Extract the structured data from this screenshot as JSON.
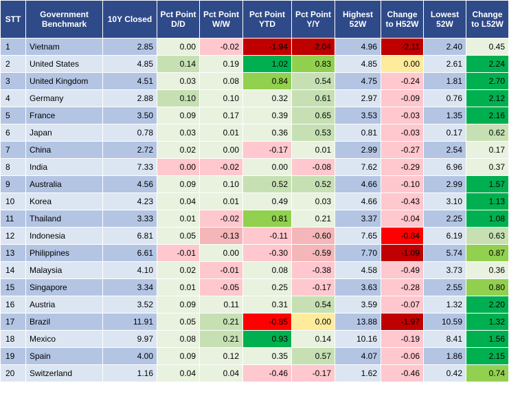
{
  "headers": {
    "stt": "STT",
    "benchmark": "Government Benchmark",
    "closed": "10Y Closed",
    "dd": "Pct Point D/D",
    "ww": "Pct Point W/W",
    "ytd": "Pct Point YTD",
    "yy": "Pct Point Y/Y",
    "h52": "Highest 52W",
    "ch52": "Change to H52W",
    "l52": "Lowest 52W",
    "cl52": "Change to L52W"
  },
  "colors": {
    "header": "#2f4a88",
    "row_odd": "#b4c5e4",
    "row_even": "#dce6f2",
    "neutral": "#e8f2df",
    "dark_red": "#c00000",
    "red": "#ff0000",
    "light_red": "#ffc7ce",
    "pale_red": "#f4b6b8",
    "yellow": "#ffeb9c",
    "bright_green": "#00b050",
    "green": "#92d050",
    "light_green": "#c6e0b4",
    "pale_green": "#e2efd9"
  },
  "rows": [
    {
      "stt": "1",
      "name": "Vietnam",
      "closed": "2.85",
      "dd": "0.00",
      "ww": "-0.02",
      "ytd": "-1.94",
      "yy": "-2.04",
      "h52": "4.96",
      "ch52": "-2.11",
      "l52": "2.40",
      "cl52": "0.45",
      "c": {
        "dd": "neutral",
        "ww": "light_red",
        "ytd": "dark_red",
        "yy": "dark_red",
        "ch52": "dark_red",
        "cl52": "neutral"
      }
    },
    {
      "stt": "2",
      "name": "United States",
      "closed": "4.85",
      "dd": "0.14",
      "ww": "0.19",
      "ytd": "1.02",
      "yy": "0.83",
      "h52": "4.85",
      "ch52": "0.00",
      "l52": "2.61",
      "cl52": "2.24",
      "c": {
        "dd": "light_green",
        "ww": "neutral",
        "ytd": "bright_green",
        "yy": "green",
        "ch52": "yellow",
        "cl52": "bright_green"
      }
    },
    {
      "stt": "3",
      "name": "United Kingdom",
      "closed": "4.51",
      "dd": "0.03",
      "ww": "0.08",
      "ytd": "0.84",
      "yy": "0.54",
      "h52": "4.75",
      "ch52": "-0.24",
      "l52": "1.81",
      "cl52": "2.70",
      "c": {
        "dd": "neutral",
        "ww": "neutral",
        "ytd": "green",
        "yy": "light_green",
        "ch52": "light_red",
        "cl52": "bright_green"
      }
    },
    {
      "stt": "4",
      "name": "Germany",
      "closed": "2.88",
      "dd": "0.10",
      "ww": "0.10",
      "ytd": "0.32",
      "yy": "0.61",
      "h52": "2.97",
      "ch52": "-0.09",
      "l52": "0.76",
      "cl52": "2.12",
      "c": {
        "dd": "light_green",
        "ww": "neutral",
        "ytd": "neutral",
        "yy": "light_green",
        "ch52": "light_red",
        "cl52": "bright_green"
      }
    },
    {
      "stt": "5",
      "name": "France",
      "closed": "3.50",
      "dd": "0.09",
      "ww": "0.17",
      "ytd": "0.39",
      "yy": "0.65",
      "h52": "3.53",
      "ch52": "-0.03",
      "l52": "1.35",
      "cl52": "2.16",
      "c": {
        "dd": "neutral",
        "ww": "neutral",
        "ytd": "neutral",
        "yy": "light_green",
        "ch52": "light_red",
        "cl52": "bright_green"
      }
    },
    {
      "stt": "6",
      "name": "Japan",
      "closed": "0.78",
      "dd": "0.03",
      "ww": "0.01",
      "ytd": "0.36",
      "yy": "0.53",
      "h52": "0.81",
      "ch52": "-0.03",
      "l52": "0.17",
      "cl52": "0.62",
      "c": {
        "dd": "neutral",
        "ww": "neutral",
        "ytd": "neutral",
        "yy": "light_green",
        "ch52": "light_red",
        "cl52": "light_green"
      }
    },
    {
      "stt": "7",
      "name": "China",
      "closed": "2.72",
      "dd": "0.02",
      "ww": "0.00",
      "ytd": "-0.17",
      "yy": "0.01",
      "h52": "2.99",
      "ch52": "-0.27",
      "l52": "2.54",
      "cl52": "0.17",
      "c": {
        "dd": "neutral",
        "ww": "neutral",
        "ytd": "light_red",
        "yy": "neutral",
        "ch52": "light_red",
        "cl52": "neutral"
      }
    },
    {
      "stt": "8",
      "name": "India",
      "closed": "7.33",
      "dd": "0.00",
      "ww": "-0.02",
      "ytd": "0.00",
      "yy": "-0.08",
      "h52": "7.62",
      "ch52": "-0.29",
      "l52": "6.96",
      "cl52": "0.37",
      "c": {
        "dd": "light_red",
        "ww": "light_red",
        "ytd": "neutral",
        "yy": "light_red",
        "ch52": "light_red",
        "cl52": "neutral"
      }
    },
    {
      "stt": "9",
      "name": "Australia",
      "closed": "4.56",
      "dd": "0.09",
      "ww": "0.10",
      "ytd": "0.52",
      "yy": "0.52",
      "h52": "4.66",
      "ch52": "-0.10",
      "l52": "2.99",
      "cl52": "1.57",
      "c": {
        "dd": "neutral",
        "ww": "neutral",
        "ytd": "light_green",
        "yy": "light_green",
        "ch52": "light_red",
        "cl52": "bright_green"
      }
    },
    {
      "stt": "10",
      "name": "Korea",
      "closed": "4.23",
      "dd": "0.04",
      "ww": "0.01",
      "ytd": "0.49",
      "yy": "0.03",
      "h52": "4.66",
      "ch52": "-0.43",
      "l52": "3.10",
      "cl52": "1.13",
      "c": {
        "dd": "neutral",
        "ww": "neutral",
        "ytd": "neutral",
        "yy": "neutral",
        "ch52": "light_red",
        "cl52": "bright_green"
      }
    },
    {
      "stt": "11",
      "name": "Thailand",
      "closed": "3.33",
      "dd": "0.01",
      "ww": "-0.02",
      "ytd": "0.81",
      "yy": "0.21",
      "h52": "3.37",
      "ch52": "-0.04",
      "l52": "2.25",
      "cl52": "1.08",
      "c": {
        "dd": "neutral",
        "ww": "light_red",
        "ytd": "green",
        "yy": "neutral",
        "ch52": "light_red",
        "cl52": "bright_green"
      }
    },
    {
      "stt": "12",
      "name": "Indonesia",
      "closed": "6.81",
      "dd": "0.05",
      "ww": "-0.13",
      "ytd": "-0.11",
      "yy": "-0.60",
      "h52": "7.65",
      "ch52": "-0.84",
      "l52": "6.19",
      "cl52": "0.63",
      "c": {
        "dd": "neutral",
        "ww": "pale_red",
        "ytd": "light_red",
        "yy": "pale_red",
        "ch52": "red",
        "cl52": "light_green"
      }
    },
    {
      "stt": "13",
      "name": "Philippines",
      "closed": "6.61",
      "dd": "-0.01",
      "ww": "0.00",
      "ytd": "-0.30",
      "yy": "-0.59",
      "h52": "7.70",
      "ch52": "-1.09",
      "l52": "5.74",
      "cl52": "0.87",
      "c": {
        "dd": "light_red",
        "ww": "neutral",
        "ytd": "light_red",
        "yy": "pale_red",
        "ch52": "dark_red",
        "cl52": "green"
      }
    },
    {
      "stt": "14",
      "name": "Malaysia",
      "closed": "4.10",
      "dd": "0.02",
      "ww": "-0.01",
      "ytd": "0.08",
      "yy": "-0.38",
      "h52": "4.58",
      "ch52": "-0.49",
      "l52": "3.73",
      "cl52": "0.36",
      "c": {
        "dd": "neutral",
        "ww": "light_red",
        "ytd": "neutral",
        "yy": "light_red",
        "ch52": "light_red",
        "cl52": "neutral"
      }
    },
    {
      "stt": "15",
      "name": "Singapore",
      "closed": "3.34",
      "dd": "0.01",
      "ww": "-0.05",
      "ytd": "0.25",
      "yy": "-0.17",
      "h52": "3.63",
      "ch52": "-0.28",
      "l52": "2.55",
      "cl52": "0.80",
      "c": {
        "dd": "neutral",
        "ww": "light_red",
        "ytd": "neutral",
        "yy": "light_red",
        "ch52": "light_red",
        "cl52": "green"
      }
    },
    {
      "stt": "16",
      "name": "Austria",
      "closed": "3.52",
      "dd": "0.09",
      "ww": "0.11",
      "ytd": "0.31",
      "yy": "0.54",
      "h52": "3.59",
      "ch52": "-0.07",
      "l52": "1.32",
      "cl52": "2.20",
      "c": {
        "dd": "neutral",
        "ww": "neutral",
        "ytd": "neutral",
        "yy": "light_green",
        "ch52": "light_red",
        "cl52": "bright_green"
      }
    },
    {
      "stt": "17",
      "name": "Brazil",
      "closed": "11.91",
      "dd": "0.05",
      "ww": "0.21",
      "ytd": "-0.85",
      "yy": "0.00",
      "h52": "13.88",
      "ch52": "-1.97",
      "l52": "10.59",
      "cl52": "1.32",
      "c": {
        "dd": "neutral",
        "ww": "light_green",
        "ytd": "red",
        "yy": "yellow",
        "ch52": "dark_red",
        "cl52": "bright_green"
      }
    },
    {
      "stt": "18",
      "name": "Mexico",
      "closed": "9.97",
      "dd": "0.08",
      "ww": "0.21",
      "ytd": "0.93",
      "yy": "0.14",
      "h52": "10.16",
      "ch52": "-0.19",
      "l52": "8.41",
      "cl52": "1.56",
      "c": {
        "dd": "neutral",
        "ww": "light_green",
        "ytd": "bright_green",
        "yy": "neutral",
        "ch52": "light_red",
        "cl52": "bright_green"
      }
    },
    {
      "stt": "19",
      "name": "Spain",
      "closed": "4.00",
      "dd": "0.09",
      "ww": "0.12",
      "ytd": "0.35",
      "yy": "0.57",
      "h52": "4.07",
      "ch52": "-0.06",
      "l52": "1.86",
      "cl52": "2.15",
      "c": {
        "dd": "neutral",
        "ww": "neutral",
        "ytd": "neutral",
        "yy": "light_green",
        "ch52": "light_red",
        "cl52": "bright_green"
      }
    },
    {
      "stt": "20",
      "name": "Switzerland",
      "closed": "1.16",
      "dd": "0.04",
      "ww": "0.04",
      "ytd": "-0.46",
      "yy": "-0.17",
      "h52": "1.62",
      "ch52": "-0.46",
      "l52": "0.42",
      "cl52": "0.74",
      "c": {
        "dd": "neutral",
        "ww": "neutral",
        "ytd": "light_red",
        "yy": "light_red",
        "ch52": "light_red",
        "cl52": "green"
      }
    }
  ]
}
